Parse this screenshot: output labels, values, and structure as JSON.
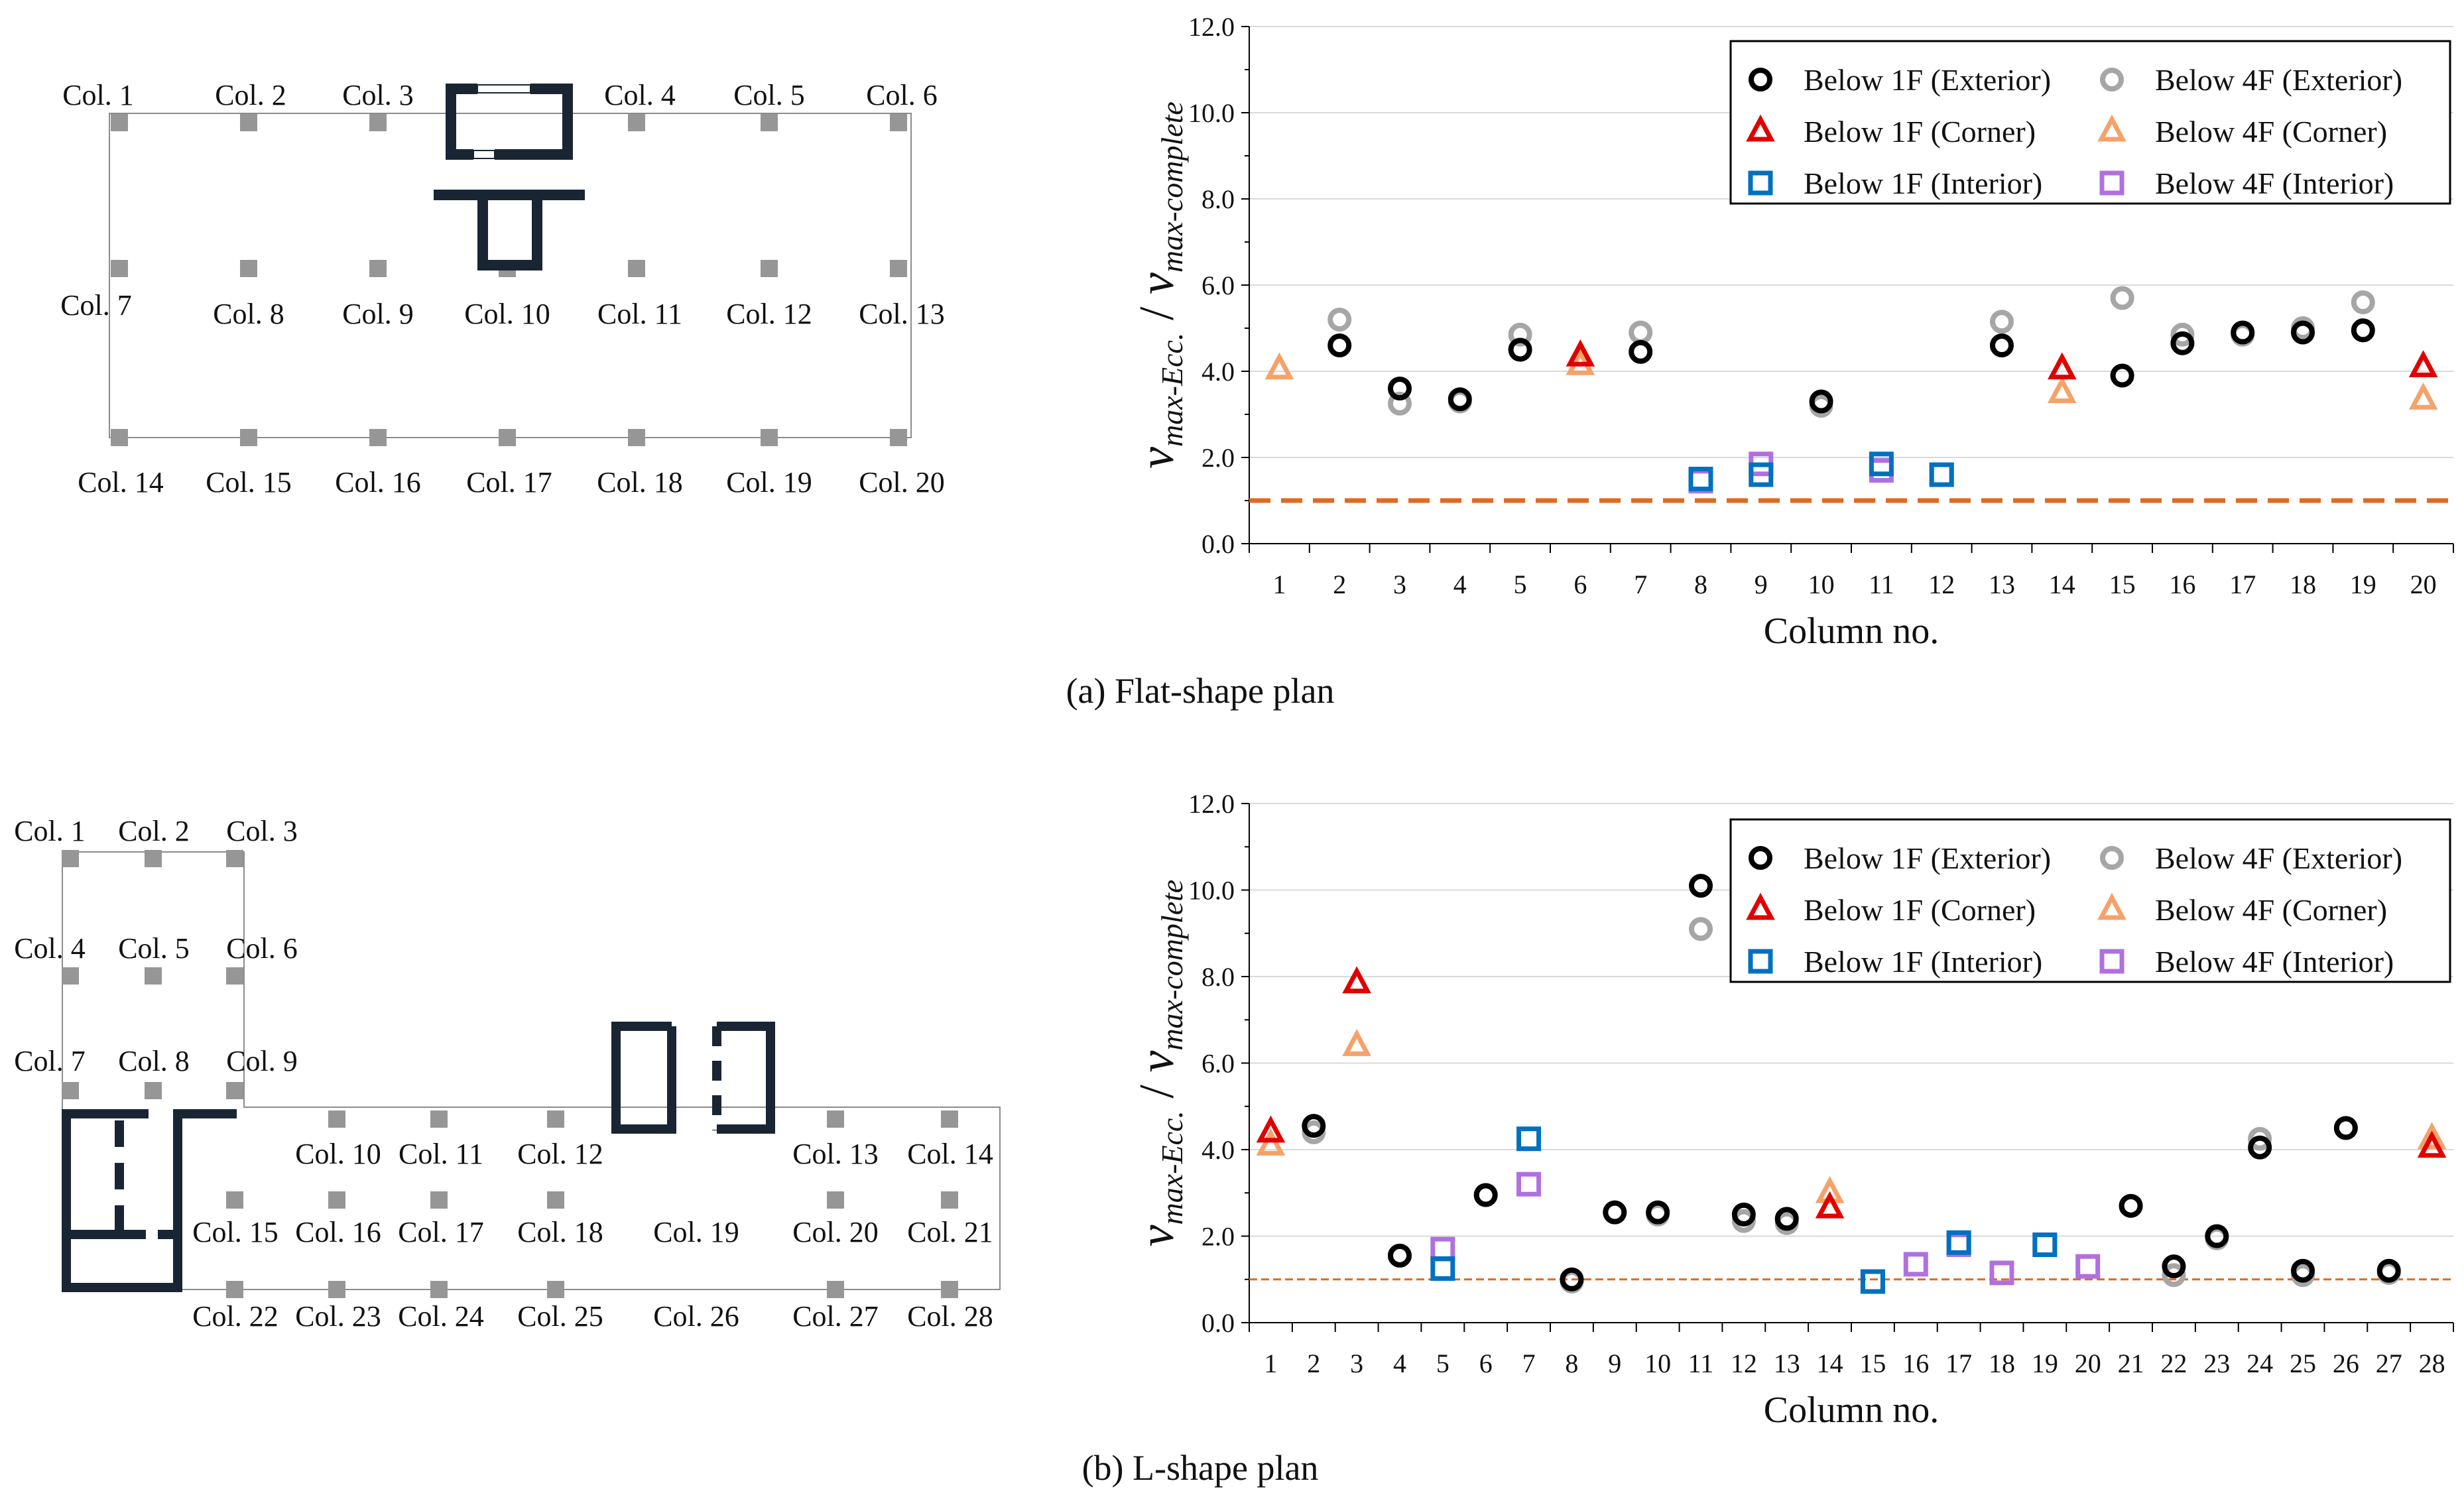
{
  "captions": {
    "a": "(a) Flat-shape plan",
    "b": "(b) L-shape plan"
  },
  "legend_labels": [
    "Below 1F (Exterior)",
    "Below 4F (Exterior)",
    "Below 1F (Corner)",
    "Below 4F (Corner)",
    "Below 1F (Interior)",
    "Below 4F (Interior)"
  ],
  "colors": {
    "b1_ext": "#000000",
    "b4_ext": "#a6a6a6",
    "b1_cor": "#e00000",
    "b4_cor": "#f5a26a",
    "b1_int": "#0070c0",
    "b4_int": "#b070e0",
    "ref_line": "#e06a1e",
    "wall": "#1a2533",
    "column": "#969696"
  },
  "plans": {
    "flat": {
      "labels": [
        "Col. 1",
        "Col. 2",
        "Col. 3",
        "Col. 4",
        "Col. 5",
        "Col. 6",
        "Col. 7",
        "Col. 8",
        "Col. 9",
        "Col. 10",
        "Col. 11",
        "Col. 12",
        "Col. 13",
        "Col. 14",
        "Col. 15",
        "Col. 16",
        "Col. 17",
        "Col. 18",
        "Col. 19",
        "Col. 20"
      ]
    },
    "lshape": {
      "labels": [
        "Col. 1",
        "Col. 2",
        "Col. 3",
        "Col. 4",
        "Col. 5",
        "Col. 6",
        "Col. 7",
        "Col. 8",
        "Col. 9",
        "Col. 10",
        "Col. 11",
        "Col. 12",
        "Col. 13",
        "Col. 14",
        "Col. 15",
        "Col. 16",
        "Col. 17",
        "Col. 18",
        "Col. 19",
        "Col. 20",
        "Col. 21",
        "Col. 22",
        "Col. 23",
        "Col. 24",
        "Col. 25",
        "Col. 26",
        "Col. 27",
        "Col. 28"
      ]
    }
  },
  "chart_data": [
    {
      "type": "scatter",
      "title": "(a) Flat-shape plan",
      "xlabel": "Column no.",
      "ylabel_main": "v",
      "ylabel_sub1": "max-Ecc.",
      "ylabel_slash": "/",
      "ylabel_sub2": "max-complete",
      "ylim": [
        0,
        12
      ],
      "yticks": [
        "0.0",
        "2.0",
        "4.0",
        "6.0",
        "8.0",
        "10.0",
        "12.0"
      ],
      "categories": [
        "1",
        "2",
        "3",
        "4",
        "5",
        "6",
        "7",
        "8",
        "9",
        "10",
        "11",
        "12",
        "13",
        "14",
        "15",
        "16",
        "17",
        "18",
        "19",
        "20"
      ],
      "reference_line": 1.0,
      "series": [
        {
          "name": "Below 1F (Exterior)",
          "marker": "circle",
          "color": "#000000",
          "x": [
            2,
            3,
            4,
            5,
            7,
            10,
            13,
            15,
            16,
            17,
            18,
            19
          ],
          "y": [
            4.6,
            3.6,
            3.35,
            4.5,
            4.45,
            3.3,
            4.6,
            3.9,
            4.65,
            4.9,
            4.9,
            4.95
          ]
        },
        {
          "name": "Below 4F (Exterior)",
          "marker": "circle",
          "color": "#a6a6a6",
          "x": [
            2,
            3,
            4,
            5,
            7,
            10,
            13,
            15,
            16,
            17,
            18,
            19
          ],
          "y": [
            5.2,
            3.25,
            3.3,
            4.85,
            4.9,
            3.2,
            5.15,
            5.7,
            4.85,
            4.85,
            5.0,
            5.6
          ]
        },
        {
          "name": "Below 1F (Corner)",
          "marker": "triangle",
          "color": "#e00000",
          "x": [
            6,
            14,
            20
          ],
          "y": [
            4.35,
            4.05,
            4.1
          ]
        },
        {
          "name": "Below 4F (Corner)",
          "marker": "triangle",
          "color": "#f5a26a",
          "x": [
            1,
            6,
            14,
            20
          ],
          "y": [
            4.05,
            4.15,
            3.5,
            3.35
          ]
        },
        {
          "name": "Below 1F (Interior)",
          "marker": "square",
          "color": "#0070c0",
          "x": [
            8,
            9,
            11,
            12
          ],
          "y": [
            1.5,
            1.6,
            1.85,
            1.6
          ]
        },
        {
          "name": "Below 4F (Interior)",
          "marker": "square",
          "color": "#b070e0",
          "x": [
            8,
            9,
            11,
            12
          ],
          "y": [
            1.45,
            1.85,
            1.7,
            1.6
          ]
        }
      ]
    },
    {
      "type": "scatter",
      "title": "(b) L-shape plan",
      "xlabel": "Column no.",
      "ylabel_main": "v",
      "ylabel_sub1": "max-Ecc.",
      "ylabel_slash": "/",
      "ylabel_sub2": "max-complete",
      "ylim": [
        0,
        12
      ],
      "yticks": [
        "0.0",
        "2.0",
        "4.0",
        "6.0",
        "8.0",
        "10.0",
        "12.0"
      ],
      "categories": [
        "1",
        "2",
        "3",
        "4",
        "5",
        "6",
        "7",
        "8",
        "9",
        "10",
        "11",
        "12",
        "13",
        "14",
        "15",
        "16",
        "17",
        "18",
        "19",
        "20",
        "21",
        "22",
        "23",
        "24",
        "25",
        "26",
        "27",
        "28"
      ],
      "reference_line": 1.0,
      "series": [
        {
          "name": "Below 1F (Exterior)",
          "marker": "circle",
          "color": "#000000",
          "x": [
            2,
            4,
            6,
            8,
            9,
            10,
            11,
            12,
            13,
            21,
            22,
            23,
            24,
            25,
            26,
            27
          ],
          "y": [
            4.55,
            1.55,
            2.95,
            1.0,
            2.55,
            2.55,
            10.1,
            2.5,
            2.4,
            2.7,
            1.3,
            2.0,
            4.05,
            1.2,
            4.5,
            1.2
          ]
        },
        {
          "name": "Below 4F (Exterior)",
          "marker": "circle",
          "color": "#a6a6a6",
          "x": [
            2,
            4,
            6,
            8,
            9,
            10,
            11,
            12,
            13,
            21,
            22,
            23,
            24,
            25,
            26,
            27
          ],
          "y": [
            4.4,
            1.55,
            2.95,
            0.95,
            2.55,
            2.5,
            9.1,
            2.35,
            2.3,
            2.7,
            1.1,
            1.95,
            4.25,
            1.1,
            4.5,
            1.15
          ]
        },
        {
          "name": "Below 1F (Corner)",
          "marker": "triangle",
          "color": "#e00000",
          "x": [
            1,
            3,
            14,
            28
          ],
          "y": [
            4.4,
            7.85,
            2.65,
            4.05
          ]
        },
        {
          "name": "Below 4F (Corner)",
          "marker": "triangle",
          "color": "#f5a26a",
          "x": [
            1,
            3,
            14,
            28
          ],
          "y": [
            4.1,
            6.4,
            3.0,
            4.25
          ]
        },
        {
          "name": "Below 1F (Interior)",
          "marker": "square",
          "color": "#0070c0",
          "x": [
            5,
            7,
            15,
            17,
            19
          ],
          "y": [
            1.25,
            4.25,
            0.95,
            1.85,
            1.8
          ]
        },
        {
          "name": "Below 4F (Interior)",
          "marker": "square",
          "color": "#b070e0",
          "x": [
            5,
            7,
            15,
            16,
            17,
            18,
            19,
            20
          ],
          "y": [
            1.7,
            3.2,
            0.95,
            1.35,
            1.8,
            1.15,
            1.8,
            1.3
          ]
        }
      ]
    }
  ]
}
